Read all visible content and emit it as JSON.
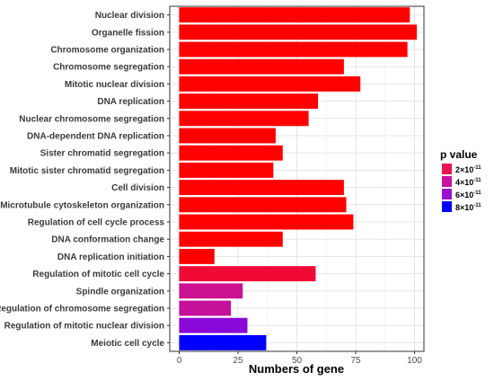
{
  "chart_data": {
    "type": "bar",
    "orientation": "horizontal",
    "xlabel": "Numbers of gene",
    "xlim": [
      -4,
      104
    ],
    "xticks": [
      0,
      25,
      50,
      75,
      100
    ],
    "grid": true,
    "legend_position": "right",
    "legend": {
      "title": "p value",
      "entries": [
        {
          "label": "2×10",
          "exp": "-11",
          "color": "#ec1250"
        },
        {
          "label": "4×10",
          "exp": "-11",
          "color": "#c812a0"
        },
        {
          "label": "6×10",
          "exp": "-11",
          "color": "#9a12cf"
        },
        {
          "label": "8×10",
          "exp": "-11",
          "color": "#0000ff"
        }
      ]
    },
    "categories": [
      "Nuclear division",
      "Organelle fission",
      "Chromosome organization",
      "Chromosome segregation",
      "Mitotic nuclear division",
      "DNA replication",
      "Nuclear chromosome segregation",
      "DNA-dependent DNA replication",
      "Sister chromatid segregation",
      "Mitotic sister chromatid segregation",
      "Cell division",
      "Microtubule cytoskeleton organization",
      "Regulation of cell cycle process",
      "DNA conformation change",
      "DNA replication initiation",
      "Regulation of mitotic cell cycle",
      "Spindle organization",
      "Regulation of chromosome segregation",
      "Regulation of mitotic nuclear division",
      "Meiotic cell cycle"
    ],
    "values": [
      98,
      101,
      97,
      70,
      77,
      59,
      55,
      41,
      44,
      40,
      70,
      71,
      74,
      44,
      15,
      58,
      27,
      22,
      29,
      37
    ],
    "colors": [
      "#ff0000",
      "#ff0000",
      "#ff0000",
      "#ff0000",
      "#ff0000",
      "#ff0000",
      "#ff0000",
      "#ff0000",
      "#ff0000",
      "#ff0000",
      "#ff0000",
      "#ff0000",
      "#ff0000",
      "#ff0000",
      "#ff0000",
      "#f20a36",
      "#cc1290",
      "#c4109a",
      "#8a08d8",
      "#0000ff"
    ]
  }
}
